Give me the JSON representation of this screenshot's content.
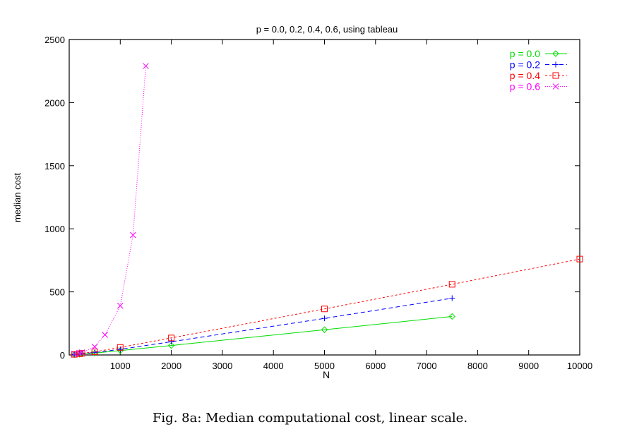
{
  "chart_data": {
    "type": "line",
    "title": "p = 0.0, 0.2, 0.4, 0.6,  using tableau",
    "xlabel": "N",
    "ylabel": "median cost",
    "xlim": [
      0,
      10000
    ],
    "ylim": [
      0,
      2500
    ],
    "xticks": [
      1000,
      2000,
      3000,
      4000,
      5000,
      6000,
      7000,
      8000,
      9000,
      10000
    ],
    "yticks": [
      0,
      500,
      1000,
      1500,
      2000,
      2500
    ],
    "legend_position": "top-right",
    "series": [
      {
        "name": "p = 0.0",
        "color": "#00dd00",
        "marker": "diamond",
        "dash": "",
        "x": [
          100,
          200,
          250,
          500,
          1000,
          2000,
          5000,
          7500
        ],
        "y": [
          3,
          6,
          8,
          15,
          35,
          75,
          200,
          305
        ]
      },
      {
        "name": "p = 0.2",
        "color": "#0000ff",
        "marker": "plus",
        "dash": "6,4",
        "x": [
          100,
          200,
          250,
          500,
          1000,
          2000,
          5000,
          7500
        ],
        "y": [
          4,
          8,
          10,
          20,
          45,
          105,
          290,
          450
        ]
      },
      {
        "name": "p = 0.4",
        "color": "#ff0000",
        "marker": "square",
        "dash": "3,3",
        "x": [
          100,
          200,
          250,
          500,
          1000,
          2000,
          5000,
          7500,
          10000
        ],
        "y": [
          5,
          10,
          13,
          25,
          60,
          135,
          365,
          560,
          760
        ]
      },
      {
        "name": "p = 0.6",
        "color": "#ff00ff",
        "marker": "cross",
        "dash": "1,2",
        "x": [
          100,
          200,
          250,
          500,
          700,
          1000,
          1250,
          1500
        ],
        "y": [
          8,
          15,
          20,
          65,
          160,
          390,
          950,
          2290
        ]
      }
    ]
  },
  "caption": "Fig. 8a: Median computational cost, linear scale."
}
